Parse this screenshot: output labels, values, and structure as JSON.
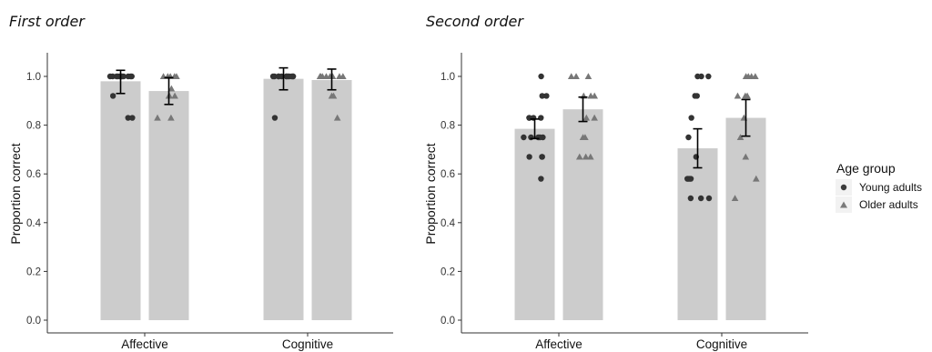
{
  "chart_data": [
    {
      "type": "bar",
      "title": "First order",
      "ylabel": "Proportion correct",
      "xlabel": "",
      "categories": [
        "Affective",
        "Cognitive"
      ],
      "ylim": [
        0,
        1.05
      ],
      "yticks": [
        "0.0",
        "0.2",
        "0.4",
        "0.6",
        "0.8",
        "1.0"
      ],
      "grid": false,
      "series": [
        {
          "name": "Young adults",
          "values": [
            0.98,
            0.99
          ],
          "error_low": [
            0.93,
            0.945
          ],
          "error_high": [
            1.025,
            1.035
          ],
          "points": [
            [
              1,
              1,
              1,
              1,
              1,
              1,
              1,
              1,
              1,
              1,
              1,
              0.92,
              0.83,
              0.83
            ],
            [
              1,
              1,
              1,
              1,
              1,
              1,
              1,
              1,
              1,
              1,
              1,
              1,
              0.83
            ]
          ]
        },
        {
          "name": "Older adults",
          "values": [
            0.94,
            0.985
          ],
          "error_low": [
            0.885,
            0.945
          ],
          "error_high": [
            0.995,
            1.03
          ],
          "points": [
            [
              1,
              1,
              1,
              1,
              1,
              0.92,
              0.92,
              0.92,
              0.92,
              0.83,
              0.83,
              0.95
            ],
            [
              1,
              1,
              1,
              1,
              1,
              1,
              1,
              1,
              0.92,
              0.92,
              0.83
            ]
          ]
        }
      ]
    },
    {
      "type": "bar",
      "title": "Second order",
      "ylabel": "Proportion correct",
      "xlabel": "",
      "categories": [
        "Affective",
        "Cognitive"
      ],
      "ylim": [
        0,
        1.05
      ],
      "yticks": [
        "0.0",
        "0.2",
        "0.4",
        "0.6",
        "0.8",
        "1.0"
      ],
      "grid": false,
      "series": [
        {
          "name": "Young adults",
          "values": [
            0.785,
            0.705
          ],
          "error_low": [
            0.745,
            0.625
          ],
          "error_high": [
            0.825,
            0.785
          ],
          "points": [
            [
              1,
              0.92,
              0.92,
              0.83,
              0.83,
              0.83,
              0.83,
              0.75,
              0.75,
              0.75,
              0.75,
              0.75,
              0.67,
              0.67,
              0.67,
              0.58
            ],
            [
              1,
              1,
              1,
              0.92,
              0.92,
              0.83,
              0.75,
              0.67,
              0.58,
              0.58,
              0.58,
              0.58,
              0.5,
              0.5,
              0.5
            ]
          ]
        },
        {
          "name": "Older adults",
          "values": [
            0.865,
            0.83
          ],
          "error_low": [
            0.815,
            0.755
          ],
          "error_high": [
            0.915,
            0.905
          ],
          "points": [
            [
              1,
              1,
              1,
              0.92,
              0.92,
              0.92,
              0.83,
              0.83,
              0.75,
              0.75,
              0.67,
              0.67,
              0.67
            ],
            [
              1,
              1,
              1,
              1,
              0.92,
              0.92,
              0.92,
              0.83,
              0.75,
              0.67,
              0.58,
              0.5
            ]
          ]
        }
      ]
    }
  ],
  "legend": {
    "title": "Age group",
    "items": [
      {
        "label": "Young adults",
        "marker": "circle",
        "color": "#3a3a3a"
      },
      {
        "label": "Older adults",
        "marker": "triangle",
        "color": "#7a7a7a"
      }
    ]
  },
  "colors": {
    "bar": "#cccccc",
    "young_point": "#333333",
    "older_point": "#777777",
    "errorbar": "#000000",
    "axis": "#333333"
  }
}
